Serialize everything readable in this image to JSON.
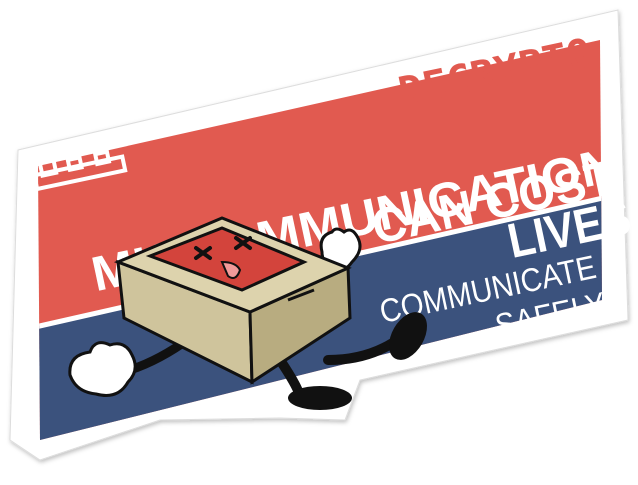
{
  "brand": "DECRYPTO",
  "headline": [
    "MISCOMMUNICATION",
    "CAN COST",
    "LIVES"
  ],
  "subline": [
    "COMMUNICATE",
    "SAFELY"
  ],
  "colors": {
    "red": "#e15a50",
    "blue": "#3b527d",
    "sticker_border": "#ffffff",
    "box": "#cfc49c",
    "box_side": "#b8ac80",
    "screen": "#d3443c"
  },
  "icons": {
    "logo_mark": "decrypto-logo-icon",
    "mascot": "broken-computer-mascot-icon"
  }
}
